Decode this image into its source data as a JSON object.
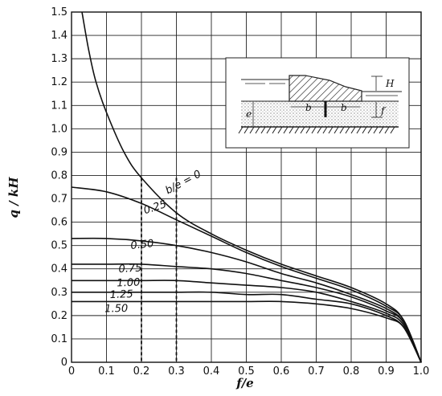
{
  "chart_data": {
    "type": "line",
    "title": "",
    "xlabel": "f/e",
    "ylabel": "q / kH",
    "xlim": [
      0,
      1.0
    ],
    "ylim": [
      0,
      1.5
    ],
    "grid": true,
    "x_ticks": [
      "0",
      "0.1",
      "0.2",
      "0.3",
      "0.4",
      "0.5",
      "0.6",
      "0.7",
      "0.8",
      "0.9",
      "1.0"
    ],
    "y_ticks": [
      "0",
      "0.1",
      "0.2",
      "0.3",
      "0.4",
      "0.5",
      "0.6",
      "0.7",
      "0.8",
      "0.9",
      "1.0",
      "1.1",
      "1.2",
      "1.3",
      "1.4",
      "1.5"
    ],
    "series": [
      {
        "name": "b/e = 0",
        "label": "b/e = 0",
        "x": [
          0.03,
          0.05,
          0.07,
          0.1,
          0.15,
          0.2,
          0.3,
          0.4,
          0.5,
          0.6,
          0.7,
          0.8,
          0.9,
          0.95,
          1.0
        ],
        "y": [
          1.5,
          1.33,
          1.2,
          1.07,
          0.9,
          0.79,
          0.64,
          0.55,
          0.48,
          0.42,
          0.37,
          0.32,
          0.25,
          0.18,
          0.0
        ]
      },
      {
        "name": "0.25",
        "label": "0.25",
        "x": [
          0.0,
          0.1,
          0.2,
          0.3,
          0.4,
          0.5,
          0.6,
          0.7,
          0.8,
          0.9,
          0.95,
          1.0
        ],
        "y": [
          0.75,
          0.73,
          0.68,
          0.61,
          0.54,
          0.47,
          0.41,
          0.36,
          0.31,
          0.24,
          0.18,
          0.0
        ]
      },
      {
        "name": "0.50",
        "label": "0.50",
        "x": [
          0.0,
          0.1,
          0.2,
          0.3,
          0.4,
          0.5,
          0.6,
          0.7,
          0.8,
          0.9,
          0.95,
          1.0
        ],
        "y": [
          0.53,
          0.53,
          0.52,
          0.5,
          0.47,
          0.43,
          0.38,
          0.34,
          0.29,
          0.23,
          0.17,
          0.0
        ]
      },
      {
        "name": "0.75",
        "label": "0.75",
        "x": [
          0.0,
          0.1,
          0.2,
          0.3,
          0.4,
          0.5,
          0.6,
          0.7,
          0.8,
          0.9,
          0.95,
          1.0
        ],
        "y": [
          0.42,
          0.42,
          0.42,
          0.41,
          0.4,
          0.38,
          0.35,
          0.32,
          0.28,
          0.22,
          0.17,
          0.0
        ]
      },
      {
        "name": "1.00",
        "label": "1.00",
        "x": [
          0.0,
          0.1,
          0.2,
          0.3,
          0.4,
          0.5,
          0.6,
          0.7,
          0.8,
          0.9,
          0.95,
          1.0
        ],
        "y": [
          0.35,
          0.35,
          0.35,
          0.35,
          0.34,
          0.33,
          0.32,
          0.3,
          0.26,
          0.21,
          0.16,
          0.0
        ]
      },
      {
        "name": "1.25",
        "label": "1.25",
        "x": [
          0.0,
          0.1,
          0.2,
          0.3,
          0.4,
          0.5,
          0.6,
          0.7,
          0.8,
          0.9,
          0.95,
          1.0
        ],
        "y": [
          0.3,
          0.3,
          0.3,
          0.3,
          0.3,
          0.29,
          0.29,
          0.27,
          0.25,
          0.2,
          0.15,
          0.0
        ]
      },
      {
        "name": "1.50",
        "label": "1.50",
        "x": [
          0.0,
          0.1,
          0.2,
          0.3,
          0.4,
          0.5,
          0.6,
          0.7,
          0.8,
          0.9,
          0.95,
          1.0
        ],
        "y": [
          0.26,
          0.26,
          0.26,
          0.26,
          0.26,
          0.26,
          0.26,
          0.25,
          0.23,
          0.19,
          0.15,
          0.0
        ]
      }
    ],
    "inset": {
      "labels": [
        "H",
        "e",
        "b",
        "b",
        "f"
      ]
    }
  }
}
